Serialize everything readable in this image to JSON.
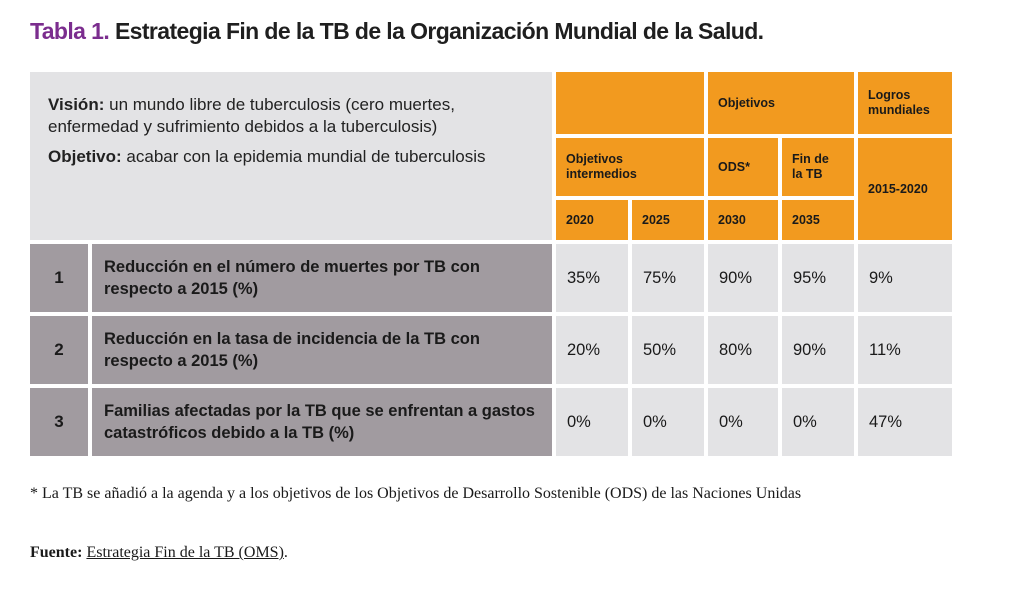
{
  "title": {
    "number": "Tabla 1.",
    "text": "Estrategia Fin de la TB de la Organización Mundial de la Salud."
  },
  "intro": {
    "vision_label": "Visión:",
    "vision_text": "un mundo libre de tuberculosis (cero muertes, enfermedad y sufrimiento debidos a la tuberculosis)",
    "objective_label": "Objetivo:",
    "objective_text": "acabar con la epidemia mundial de tuberculosis"
  },
  "headers": {
    "objetivos": "Objetivos",
    "logros": "Logros mundiales",
    "intermedios": "Objetivos intermedios",
    "ods": "ODS*",
    "fin": "Fin de la TB",
    "periodo": "2015-2020",
    "years": [
      "2020",
      "2025",
      "2030",
      "2035"
    ]
  },
  "rows": [
    {
      "num": "1",
      "label": "Reducción en el número de muertes por TB con respecto a 2015 (%)",
      "values": [
        "35%",
        "75%",
        "90%",
        "95%",
        "9%"
      ]
    },
    {
      "num": "2",
      "label": "Reducción en la tasa de incidencia de la TB con respecto a 2015 (%)",
      "values": [
        "20%",
        "50%",
        "80%",
        "90%",
        "11%"
      ]
    },
    {
      "num": "3",
      "label": "Familias afectadas por la TB que se enfrentan a gastos catastróficos debido a la TB (%)",
      "values": [
        "0%",
        "0%",
        "0%",
        "0%",
        "47%"
      ]
    }
  ],
  "footnote": "* La TB se añadió a la agenda y a los objetivos de los Objetivos de Desarrollo Sostenible (ODS) de las Naciones Unidas",
  "source": {
    "label": "Fuente:",
    "link_text": "Estrategia Fin de la TB (OMS)",
    "suffix": "."
  },
  "colors": {
    "orange": "#f29a1f",
    "gray_light": "#e3e3e5",
    "gray_dark": "#a19ba0",
    "title_accent": "#7b2d8e"
  }
}
